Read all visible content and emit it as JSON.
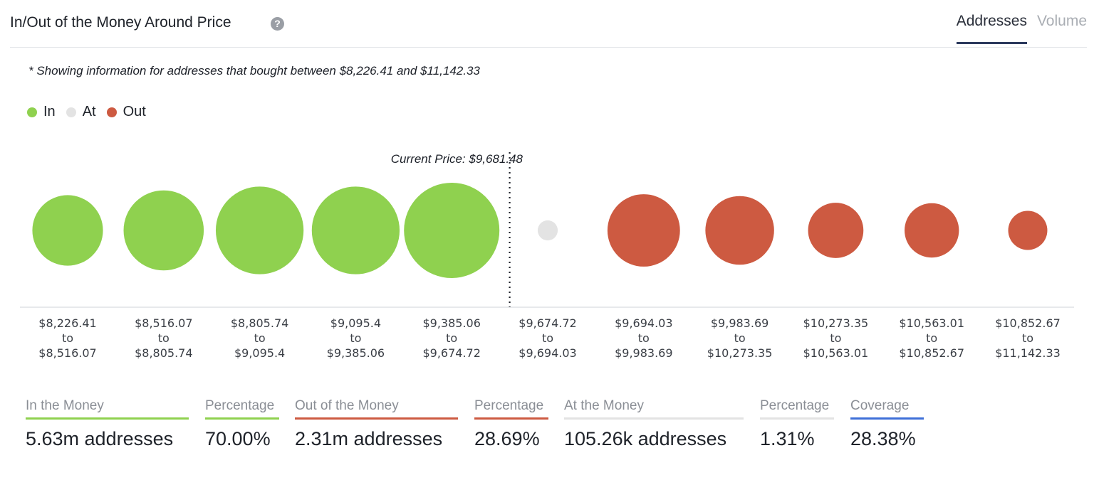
{
  "header": {
    "title": "In/Out of the Money Around Price",
    "help_icon": "?",
    "tabs": [
      {
        "label": "Addresses",
        "active": true
      },
      {
        "label": "Volume",
        "active": false
      }
    ]
  },
  "note": "* Showing information for addresses that bought between $8,226.41 and $11,142.33",
  "legend": [
    {
      "label": "In",
      "color": "#8fd14f"
    },
    {
      "label": "At",
      "color": "#e3e3e3"
    },
    {
      "label": "Out",
      "color": "#cd5a41"
    }
  ],
  "current_price_label": "Current Price: $9,681.48",
  "chart_data": {
    "type": "scatter",
    "title": "",
    "xlabel": "",
    "ylabel": "",
    "current_price": 9681.48,
    "bubble_size_meaning": "relative number of addresses (visual estimate)",
    "categories": [
      {
        "from": "$8,226.41",
        "to": "$8,516.07",
        "status": "In",
        "size": 0.74
      },
      {
        "from": "$8,516.07",
        "to": "$8,805.74",
        "status": "In",
        "size": 0.84
      },
      {
        "from": "$8,805.74",
        "to": "$9,095.4",
        "status": "In",
        "size": 0.92
      },
      {
        "from": "$9,095.4",
        "to": "$9,385.06",
        "status": "In",
        "size": 0.92
      },
      {
        "from": "$9,385.06",
        "to": "$9,674.72",
        "status": "In",
        "size": 1.0
      },
      {
        "from": "$9,674.72",
        "to": "$9,694.03",
        "status": "At",
        "size": 0.21
      },
      {
        "from": "$9,694.03",
        "to": "$9,983.69",
        "status": "Out",
        "size": 0.76
      },
      {
        "from": "$9,983.69",
        "to": "$10,273.35",
        "status": "Out",
        "size": 0.72
      },
      {
        "from": "$10,273.35",
        "to": "$10,563.01",
        "status": "Out",
        "size": 0.58
      },
      {
        "from": "$10,563.01",
        "to": "$10,852.67",
        "status": "Out",
        "size": 0.57
      },
      {
        "from": "$10,852.67",
        "to": "$11,142.33",
        "status": "Out",
        "size": 0.41
      }
    ],
    "range_separator": "to",
    "colors": {
      "In": "#8fd14f",
      "At": "#e3e3e3",
      "Out": "#cd5a41"
    }
  },
  "stats": [
    {
      "label": "In the Money",
      "value": "5.63m addresses",
      "color": "#8fd14f"
    },
    {
      "label": "Percentage",
      "value": "70.00%",
      "color": "#8fd14f"
    },
    {
      "label": "Out of the Money",
      "value": "2.31m addresses",
      "color": "#cd5a41"
    },
    {
      "label": "Percentage",
      "value": "28.69%",
      "color": "#cd5a41"
    },
    {
      "label": "At the Money",
      "value": "105.26k addresses",
      "color": "#e3e3e3"
    },
    {
      "label": "Percentage",
      "value": "1.31%",
      "color": "#e3e3e3"
    },
    {
      "label": "Coverage",
      "value": "28.38%",
      "color": "#3e6fd8"
    }
  ]
}
